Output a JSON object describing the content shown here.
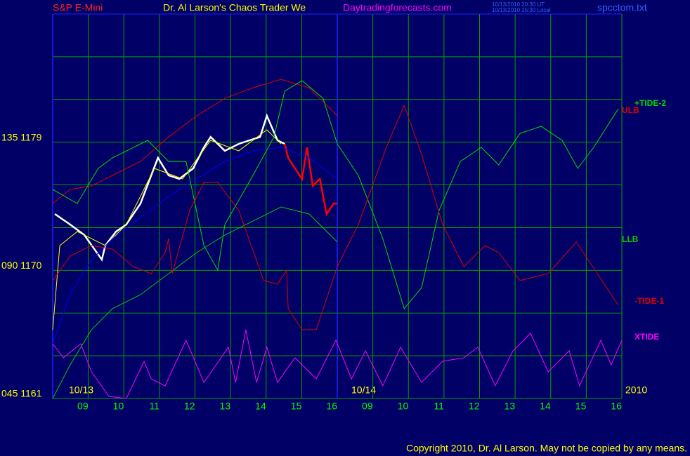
{
  "chart_data": {
    "type": "line",
    "title": "Dr. Al Larson's Chaos Trader We",
    "header_left": "S&P E-Mini",
    "header_site": "Daytradingforecasts.com",
    "header_times": [
      "10/13/2010 20:30 UT",
      "10/13/2010 15:30 Local"
    ],
    "header_file": "spcctom.txt",
    "copyright": "Copyright 2010, Dr. Al Larson. May not be copied by any means.",
    "date_labels": [
      "10/13",
      "10/14",
      "2010"
    ],
    "xlim": [
      0,
      16
    ],
    "xticks": [
      {
        "value": 1,
        "label": "09"
      },
      {
        "value": 2,
        "label": "10"
      },
      {
        "value": 3,
        "label": "11"
      },
      {
        "value": 4,
        "label": "12"
      },
      {
        "value": 5,
        "label": "13"
      },
      {
        "value": 6,
        "label": "14"
      },
      {
        "value": 7,
        "label": "15"
      },
      {
        "value": 8,
        "label": "16"
      },
      {
        "value": 9,
        "label": "09"
      },
      {
        "value": 10,
        "label": "10"
      },
      {
        "value": 11,
        "label": "11"
      },
      {
        "value": 12,
        "label": "12"
      },
      {
        "value": 13,
        "label": "13"
      },
      {
        "value": 14,
        "label": "14"
      },
      {
        "value": 15,
        "label": "15"
      },
      {
        "value": 16,
        "label": "16"
      }
    ],
    "day_breaks": [
      0,
      8
    ],
    "ylim": [
      1161,
      1188
    ],
    "yticks": [
      {
        "value": 1161,
        "label": "045 1161"
      },
      {
        "value": 1170,
        "label": "090 1170"
      },
      {
        "value": 1179,
        "label": "135 1179"
      }
    ],
    "ygrid": [
      1161,
      1164,
      1167,
      1170,
      1173,
      1176,
      1179,
      1182,
      1185,
      1188
    ],
    "grid": true,
    "grid_color": "#00a000",
    "series": [
      {
        "color": "#ffffff",
        "x": [
          0.06,
          0.49,
          0.89,
          1.38,
          1.48,
          1.78,
          2.07,
          2.47,
          2.77,
          2.96,
          3.26,
          3.56,
          3.95,
          4.25,
          4.44,
          4.84,
          5.23,
          5.53,
          5.83,
          6.02,
          6.32,
          6.52
        ],
        "values": [
          1173.96,
          1173.22,
          1172.48,
          1170.75,
          1171.74,
          1172.72,
          1173.22,
          1174.69,
          1176.67,
          1177.9,
          1176.67,
          1176.42,
          1177.16,
          1178.64,
          1179.37,
          1178.39,
          1178.88,
          1179.13,
          1179.37,
          1180.85,
          1179.13,
          1178.88
        ]
      },
      {
        "color": "#ff0000",
        "x": [
          6.52,
          6.62,
          6.81,
          7.01,
          7.15,
          7.31,
          7.51,
          7.7,
          7.9,
          8
        ],
        "values": [
          1178.88,
          1177.9,
          1177.16,
          1176.42,
          1178.64,
          1175.93,
          1176.42,
          1173.96,
          1174.69,
          1174.69
        ]
      },
      {
        "color": "#ffff00",
        "x": [
          0,
          0.2,
          0.69,
          1.48,
          2.07,
          2.86,
          3.65,
          4.44,
          5.23,
          6.02,
          6.42
        ],
        "values": [
          1165.83,
          1171.74,
          1172.72,
          1171.74,
          1173.22,
          1177.16,
          1176.42,
          1179.13,
          1178.39,
          1179.87,
          1178.88
        ]
      },
      {
        "color": "#0000ff",
        "x": [
          0,
          0.49,
          1.09,
          1.68,
          2.47,
          3.26,
          4.05,
          4.84,
          5.63,
          6.42,
          7.21,
          8
        ],
        "values": [
          1164.84,
          1168.29,
          1170.75,
          1172.23,
          1173.71,
          1175.19,
          1176.42,
          1177.65,
          1178.39,
          1178.64,
          1177.9,
          1176.42
        ]
      },
      {
        "name": "ULB",
        "color": "#dd0000",
        "x": [
          0,
          0.49,
          1.09,
          1.68,
          2.47,
          3.26,
          4.05,
          4.84,
          5.63,
          6.42,
          7.21,
          8
        ],
        "values": [
          1174.69,
          1175.68,
          1175.93,
          1176.67,
          1177.65,
          1179.37,
          1180.85,
          1182.08,
          1182.82,
          1183.41,
          1182.82,
          1180.85
        ]
      },
      {
        "name": "LLB",
        "color": "#00cc00",
        "x": [
          0,
          0.49,
          1.09,
          1.68,
          2.47,
          3.26,
          4.05,
          4.84,
          5.63,
          6.42,
          7.21,
          8
        ],
        "values": [
          1161,
          1163.36,
          1165.83,
          1167.31,
          1168.29,
          1169.77,
          1171.25,
          1172.48,
          1173.46,
          1174.45,
          1173.96,
          1171.99
        ]
      },
      {
        "name": "+TIDE-2",
        "color": "#00dd00",
        "x": [
          0,
          0.69,
          1.28,
          1.68,
          2.67,
          3.26,
          3.75,
          4.25,
          4.64,
          4.84,
          5.63,
          6.22,
          6.52,
          7.01,
          7.6,
          8,
          8.59,
          9.28,
          9.88,
          10.37,
          10.86,
          11.46,
          12.05,
          12.54,
          13.14,
          13.73,
          14.32,
          14.76,
          15.21,
          15.9
        ],
        "values": [
          1175.68,
          1174.69,
          1177.16,
          1177.9,
          1179.13,
          1177.65,
          1177.65,
          1171.74,
          1170.01,
          1173.22,
          1176.67,
          1179.37,
          1182.58,
          1183.32,
          1182.08,
          1178.88,
          1176.67,
          1172.23,
          1167.31,
          1168.78,
          1174.2,
          1177.65,
          1178.64,
          1177.4,
          1179.62,
          1180.11,
          1179.13,
          1177.16,
          1178.64,
          1181.34
        ]
      },
      {
        "name": "-TIDE-1",
        "color": "#dd0000",
        "x": [
          0,
          0.49,
          1.09,
          1.68,
          2.27,
          2.77,
          3.16,
          3.26,
          3.36,
          3.85,
          4.25,
          4.64,
          5.23,
          5.93,
          6.32,
          6.58,
          6.62,
          7.01,
          7.41,
          8,
          8.59,
          9.38,
          9.88,
          10.37,
          10.96,
          11.56,
          12.15,
          12.54,
          13.14,
          13.93,
          14.72,
          15.31,
          15.9
        ],
        "values": [
          1169.28,
          1171,
          1171.74,
          1171.49,
          1170.26,
          1169.77,
          1171.25,
          1172.23,
          1169.77,
          1174.2,
          1176.17,
          1176.17,
          1174.2,
          1169.28,
          1169.03,
          1170.01,
          1167.31,
          1165.83,
          1165.83,
          1170.26,
          1173.22,
          1178.64,
          1181.59,
          1178.14,
          1173.22,
          1170.26,
          1171.74,
          1171.25,
          1169.28,
          1169.77,
          1171.99,
          1169.77,
          1167.55
        ]
      },
      {
        "name": "XTIDE",
        "color": "#ff00ff",
        "x": [
          0,
          0.3,
          0.79,
          1.09,
          1.58,
          2.07,
          2.57,
          2.77,
          3.16,
          3.75,
          4.25,
          4.94,
          5.14,
          5.43,
          5.73,
          6.02,
          6.32,
          6.81,
          7.41,
          7.96,
          8.4,
          8.79,
          9.28,
          9.78,
          10.37,
          10.96,
          11.56,
          11.95,
          12.44,
          12.94,
          13.43,
          13.93,
          14.52,
          14.81,
          15.41,
          15.7,
          16
        ],
        "values": [
          1164.84,
          1163.86,
          1164.84,
          1162.87,
          1161.15,
          1161,
          1163.61,
          1162.38,
          1161.89,
          1165.09,
          1162.13,
          1164.6,
          1162.13,
          1165.83,
          1162.13,
          1164.6,
          1162.13,
          1163.86,
          1162.38,
          1165.09,
          1162.38,
          1164.35,
          1161.89,
          1164.6,
          1162.13,
          1163.61,
          1163.86,
          1164.6,
          1161.89,
          1164.35,
          1165.58,
          1162.87,
          1164.35,
          1161.89,
          1165.09,
          1163.36,
          1165.09
        ]
      }
    ]
  }
}
